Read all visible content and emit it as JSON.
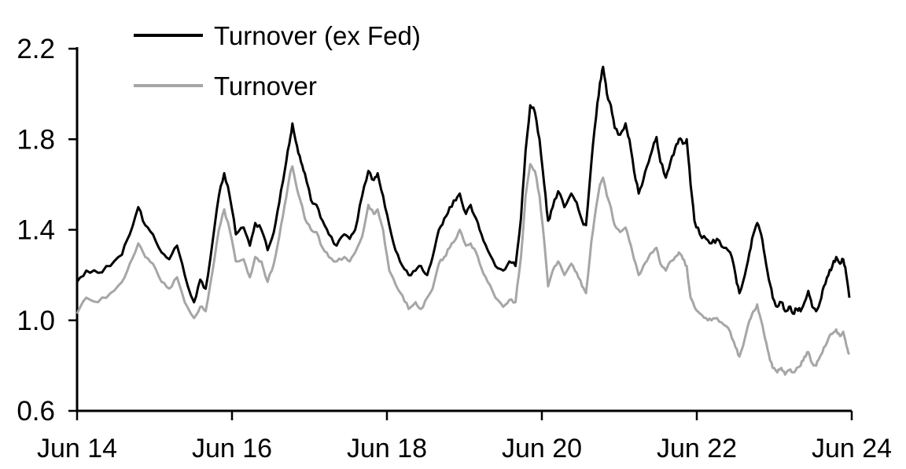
{
  "chart_data": {
    "type": "line",
    "title": "",
    "x_axis": {
      "unit": "years since Jun 2014",
      "tick_positions": [
        0,
        2,
        4,
        6,
        8,
        10
      ],
      "tick_labels": [
        "Jun 14",
        "Jun 16",
        "Jun 18",
        "Jun 20",
        "Jun 22",
        "Jun 24"
      ]
    },
    "y_axis": {
      "tick_values": [
        0.6,
        1.0,
        1.4,
        1.8,
        2.2
      ],
      "tick_labels": [
        "0.6",
        "1.0",
        "1.4",
        "1.8",
        "2.2"
      ]
    },
    "xlim": [
      0,
      10
    ],
    "ylim": [
      0.6,
      2.2
    ],
    "grid": false,
    "legend_position": "top-left inside plot",
    "axis_color": "#000000",
    "background": "#ffffff",
    "x": [
      0,
      0.12,
      0.27,
      0.43,
      0.58,
      0.68,
      0.79,
      0.88,
      0.98,
      1.09,
      1.19,
      1.29,
      1.39,
      1.51,
      1.59,
      1.66,
      1.75,
      1.83,
      1.9,
      1.97,
      2.05,
      2.15,
      2.23,
      2.3,
      2.38,
      2.46,
      2.54,
      2.61,
      2.68,
      2.74,
      2.78,
      2.84,
      2.89,
      2.94,
      3.02,
      3.09,
      3.17,
      3.25,
      3.35,
      3.45,
      3.52,
      3.59,
      3.68,
      3.76,
      3.83,
      3.88,
      3.95,
      4.03,
      4.11,
      4.2,
      4.28,
      4.37,
      4.44,
      4.52,
      4.59,
      4.67,
      4.74,
      4.81,
      4.89,
      4.94,
      5.02,
      5.08,
      5.15,
      5.22,
      5.3,
      5.4,
      5.5,
      5.58,
      5.66,
      5.73,
      5.79,
      5.85,
      5.91,
      5.97,
      6.03,
      6.08,
      6.14,
      6.21,
      6.29,
      6.38,
      6.45,
      6.52,
      6.57,
      6.64,
      6.7,
      6.75,
      6.79,
      6.84,
      6.89,
      6.94,
      7.01,
      7.08,
      7.13,
      7.19,
      7.25,
      7.31,
      7.38,
      7.43,
      7.48,
      7.53,
      7.6,
      7.66,
      7.72,
      7.77,
      7.82,
      7.87,
      7.92,
      7.97,
      8.04,
      8.12,
      8.19,
      8.26,
      8.35,
      8.43,
      8.5,
      8.55,
      8.62,
      8.68,
      8.73,
      8.78,
      8.83,
      8.88,
      8.93,
      8.98,
      9.04,
      9.09,
      9.14,
      9.19,
      9.24,
      9.29,
      9.34,
      9.39,
      9.44,
      9.49,
      9.54,
      9.59,
      9.64,
      9.7,
      9.75,
      9.8,
      9.85,
      9.89,
      9.93,
      9.97
    ],
    "series": [
      {
        "name": "Turnover (ex Fed)",
        "color": "#000000",
        "line_width": 3,
        "values": [
          1.17,
          1.22,
          1.21,
          1.24,
          1.29,
          1.38,
          1.5,
          1.42,
          1.38,
          1.3,
          1.27,
          1.33,
          1.2,
          1.08,
          1.18,
          1.14,
          1.35,
          1.55,
          1.65,
          1.55,
          1.38,
          1.41,
          1.33,
          1.43,
          1.4,
          1.31,
          1.39,
          1.52,
          1.66,
          1.78,
          1.87,
          1.77,
          1.7,
          1.65,
          1.53,
          1.51,
          1.44,
          1.38,
          1.33,
          1.38,
          1.36,
          1.4,
          1.55,
          1.66,
          1.62,
          1.65,
          1.55,
          1.42,
          1.31,
          1.24,
          1.2,
          1.22,
          1.24,
          1.2,
          1.28,
          1.4,
          1.45,
          1.5,
          1.53,
          1.56,
          1.47,
          1.51,
          1.45,
          1.38,
          1.31,
          1.24,
          1.22,
          1.26,
          1.24,
          1.45,
          1.75,
          1.95,
          1.92,
          1.8,
          1.6,
          1.44,
          1.5,
          1.57,
          1.5,
          1.56,
          1.52,
          1.44,
          1.42,
          1.7,
          1.9,
          2.05,
          2.12,
          2.0,
          1.95,
          1.85,
          1.82,
          1.87,
          1.8,
          1.66,
          1.56,
          1.62,
          1.7,
          1.76,
          1.81,
          1.7,
          1.63,
          1.7,
          1.76,
          1.8,
          1.78,
          1.8,
          1.6,
          1.44,
          1.38,
          1.36,
          1.34,
          1.36,
          1.32,
          1.3,
          1.2,
          1.12,
          1.2,
          1.3,
          1.38,
          1.43,
          1.38,
          1.28,
          1.18,
          1.1,
          1.06,
          1.08,
          1.04,
          1.06,
          1.03,
          1.05,
          1.04,
          1.08,
          1.13,
          1.06,
          1.04,
          1.08,
          1.15,
          1.2,
          1.24,
          1.28,
          1.25,
          1.27,
          1.2,
          1.1
        ]
      },
      {
        "name": "Turnover",
        "color": "#A6A6A6",
        "line_width": 3,
        "values": [
          1.03,
          1.1,
          1.08,
          1.12,
          1.17,
          1.25,
          1.34,
          1.28,
          1.25,
          1.17,
          1.14,
          1.19,
          1.08,
          1.01,
          1.06,
          1.04,
          1.22,
          1.4,
          1.49,
          1.4,
          1.26,
          1.27,
          1.19,
          1.28,
          1.26,
          1.17,
          1.25,
          1.37,
          1.51,
          1.63,
          1.68,
          1.58,
          1.52,
          1.45,
          1.4,
          1.39,
          1.32,
          1.28,
          1.26,
          1.28,
          1.26,
          1.3,
          1.37,
          1.51,
          1.47,
          1.49,
          1.4,
          1.22,
          1.16,
          1.11,
          1.05,
          1.08,
          1.05,
          1.1,
          1.14,
          1.25,
          1.28,
          1.32,
          1.36,
          1.4,
          1.33,
          1.34,
          1.3,
          1.23,
          1.17,
          1.1,
          1.06,
          1.09,
          1.08,
          1.28,
          1.55,
          1.69,
          1.66,
          1.55,
          1.35,
          1.15,
          1.22,
          1.26,
          1.2,
          1.25,
          1.21,
          1.15,
          1.12,
          1.35,
          1.5,
          1.6,
          1.63,
          1.55,
          1.5,
          1.42,
          1.39,
          1.41,
          1.35,
          1.27,
          1.2,
          1.24,
          1.28,
          1.3,
          1.32,
          1.25,
          1.22,
          1.26,
          1.28,
          1.3,
          1.27,
          1.24,
          1.1,
          1.06,
          1.03,
          1.01,
          1.0,
          1.01,
          0.98,
          0.95,
          0.88,
          0.84,
          0.92,
          1.0,
          1.04,
          1.07,
          1.0,
          0.92,
          0.85,
          0.79,
          0.77,
          0.79,
          0.76,
          0.78,
          0.77,
          0.79,
          0.8,
          0.84,
          0.86,
          0.81,
          0.8,
          0.84,
          0.88,
          0.92,
          0.94,
          0.96,
          0.93,
          0.95,
          0.89,
          0.85
        ]
      }
    ]
  }
}
